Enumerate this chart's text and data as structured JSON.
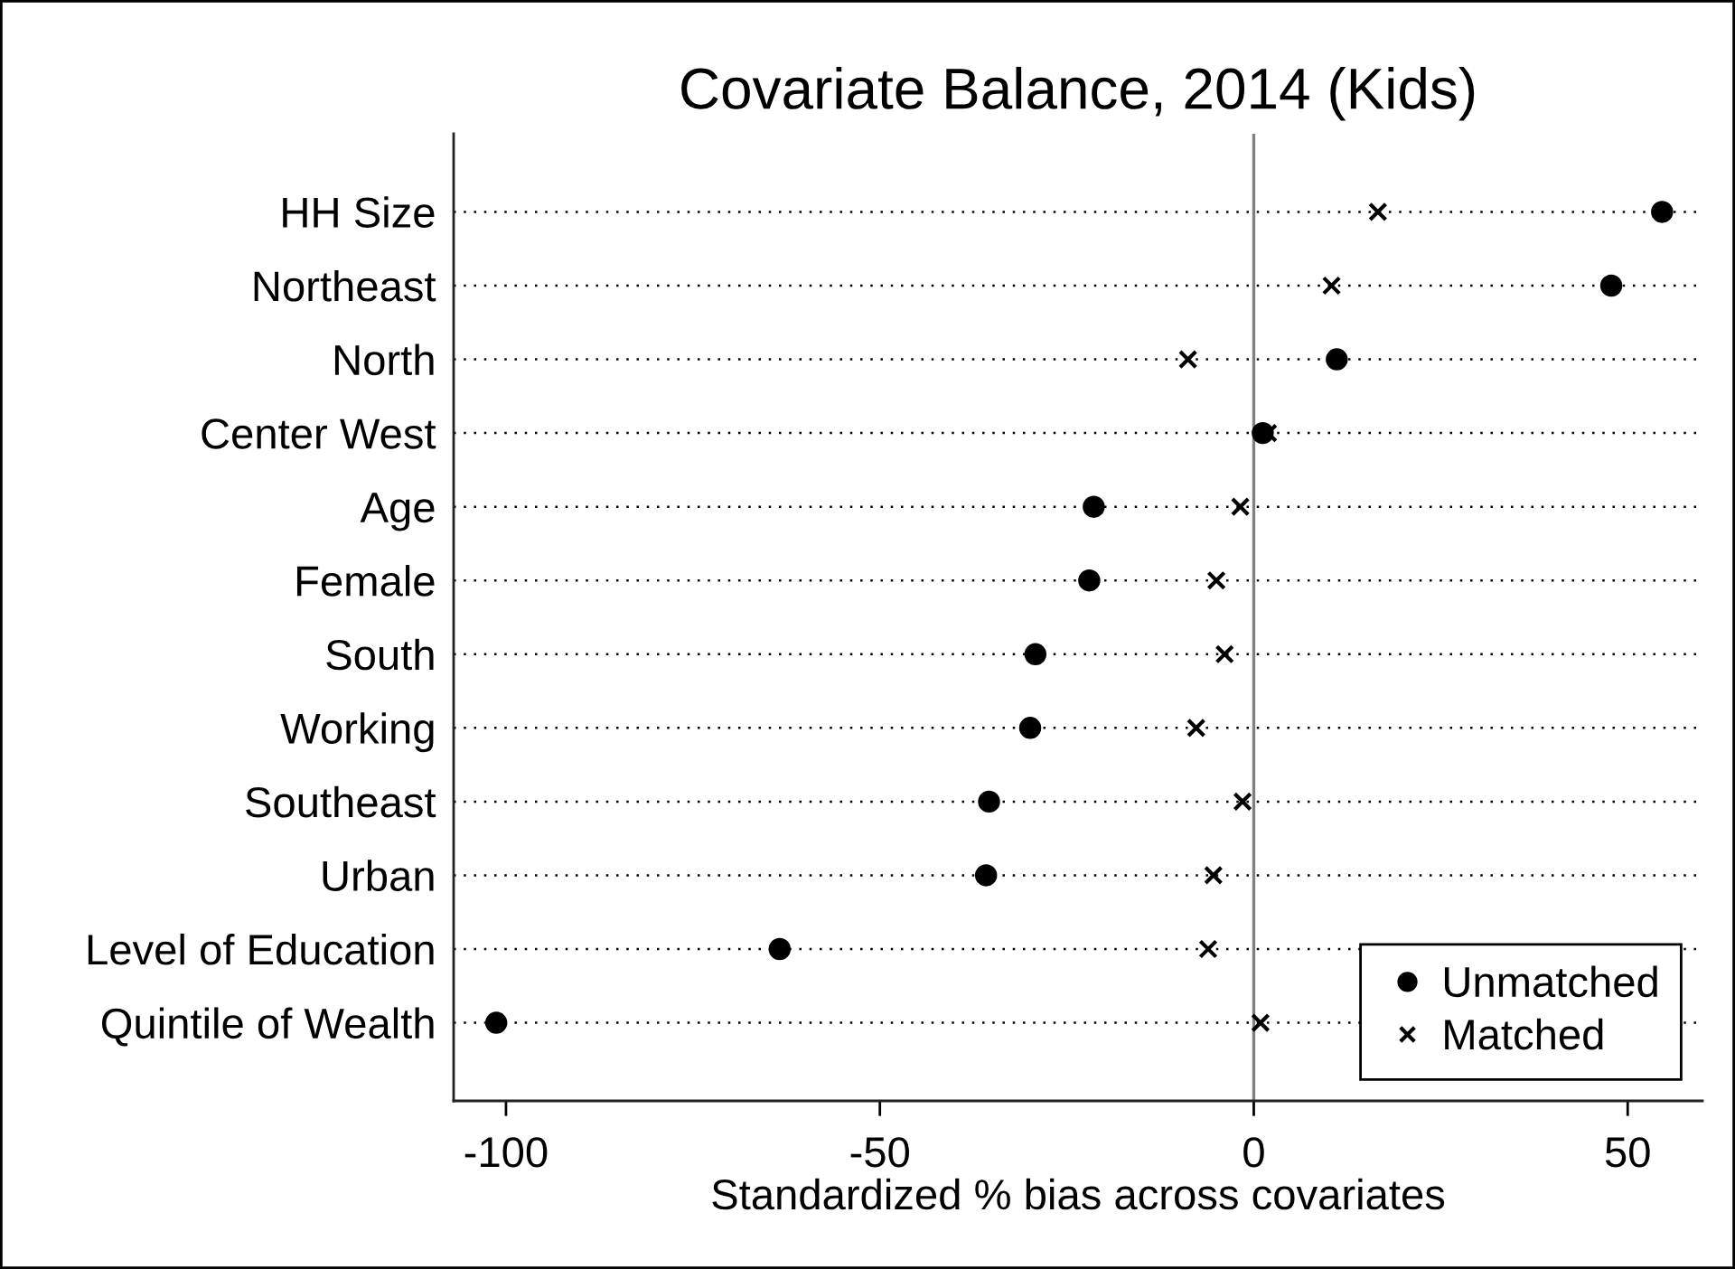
{
  "chart_data": {
    "type": "scatter",
    "title": "Covariate Balance, 2014 (Kids)",
    "xlabel": "Standardized % bias across covariates",
    "orientation": "horizontal",
    "categories": [
      "HH Size",
      "Northeast",
      "North",
      "Center West",
      "Age",
      "Female",
      "South",
      "Working",
      "Southeast",
      "Urban",
      "Level of Education",
      "Quintile of Wealth"
    ],
    "series": [
      {
        "name": "Unmatched",
        "color": "#000000",
        "marker": "circle",
        "values": [
          54.6,
          47.8,
          11.1,
          1.2,
          -21.4,
          -22.0,
          -29.2,
          -29.9,
          -35.4,
          -35.8,
          -63.4,
          -101.3
        ]
      },
      {
        "name": "Matched",
        "color": "#000000",
        "marker": "cross",
        "values": [
          16.6,
          10.4,
          -8.8,
          1.9,
          -1.8,
          -5.0,
          -3.9,
          -7.7,
          -1.5,
          -5.4,
          -6.1,
          0.9
        ]
      }
    ],
    "xlim": [
      -107,
      60
    ],
    "xticks": [
      -100,
      -50,
      0,
      50
    ],
    "ref_lines": [
      {
        "axis": "x",
        "value": 0,
        "color": "#808080"
      }
    ],
    "grid": "y",
    "legend": "bottom right"
  }
}
